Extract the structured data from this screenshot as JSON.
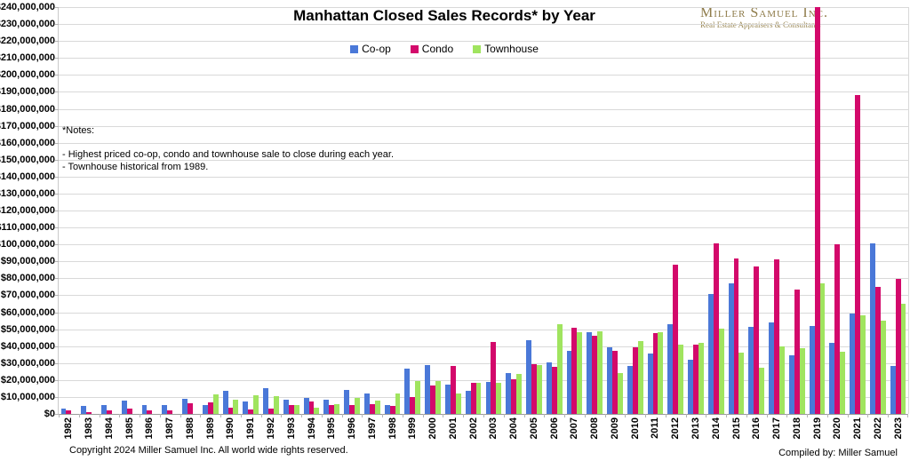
{
  "title": "Manhattan Closed Sales Records* by Year",
  "logo": {
    "name": "Miller Samuel Inc.",
    "tagline": "Real Estate Appraisers & Consultants",
    "color": "#8e7b49"
  },
  "legend": [
    {
      "label": "Co-op",
      "color": "#4a78d8"
    },
    {
      "label": "Condo",
      "color": "#d3096b"
    },
    {
      "label": "Townhouse",
      "color": "#a0e45f"
    }
  ],
  "notes": {
    "heading": "*Notes:",
    "lines": [
      "- Highest priced co-op, condo and townhouse sale to close during each year.",
      "- Townhouse historical from 1989."
    ]
  },
  "footer": {
    "copyright": "Copyright 2024 Miller Samuel Inc.  All world wide rights reserved.",
    "compiled_by": "Compiled by: Miller Samuel"
  },
  "chart_data": {
    "type": "bar",
    "title": "Manhattan Closed Sales Records* by Year",
    "grid": true,
    "legend_position": "top-center",
    "ylim": [
      0,
      240000000
    ],
    "ytick_interval": 10000000,
    "ytick_labels": [
      "$240,000,000",
      "$230,000,000",
      "$220,000,000",
      "$210,000,000",
      "$200,000,000",
      "$190,000,000",
      "$180,000,000",
      "$170,000,000",
      "$160,000,000",
      "$150,000,000",
      "$140,000,000",
      "$130,000,000",
      "$120,000,000",
      "$110,000,000",
      "$100,000,000",
      "$90,000,000",
      "$80,000,000",
      "$70,000,000",
      "$60,000,000",
      "$50,000,000",
      "$40,000,000",
      "$30,000,000",
      "$20,000,000",
      "$10,000,000",
      "$0"
    ],
    "categories": [
      1982,
      1983,
      1984,
      1985,
      1986,
      1987,
      1988,
      1989,
      1990,
      1991,
      1992,
      1993,
      1994,
      1995,
      1996,
      1997,
      1998,
      1999,
      2000,
      2001,
      2002,
      2003,
      2004,
      2005,
      2006,
      2007,
      2008,
      2009,
      2010,
      2011,
      2012,
      2013,
      2014,
      2015,
      2016,
      2017,
      2018,
      2019,
      2020,
      2021,
      2022,
      2023
    ],
    "series": [
      {
        "name": "Co-op",
        "color": "#4a78d8",
        "values": [
          3000000,
          4500000,
          5000000,
          8000000,
          5500000,
          5000000,
          9000000,
          5000000,
          13500000,
          7500000,
          15000000,
          8500000,
          9500000,
          8500000,
          14000000,
          12000000,
          5000000,
          26500000,
          29000000,
          17500000,
          13500000,
          19000000,
          24000000,
          43500000,
          30500000,
          37000000,
          48000000,
          39500000,
          28500000,
          35500000,
          53000000,
          32000000,
          70500000,
          77000000,
          51500000,
          54000000,
          34500000,
          52000000,
          42000000,
          59000000,
          100500000,
          28500000
        ]
      },
      {
        "name": "Condo",
        "color": "#d3096b",
        "values": [
          2000000,
          1000000,
          2000000,
          3000000,
          2000000,
          2000000,
          6500000,
          7000000,
          3500000,
          2500000,
          3000000,
          5000000,
          7500000,
          5500000,
          5000000,
          6000000,
          4500000,
          10000000,
          17000000,
          28500000,
          18500000,
          42500000,
          20500000,
          29500000,
          28000000,
          51000000,
          46000000,
          37000000,
          39500000,
          47500000,
          88000000,
          41000000,
          100500000,
          91500000,
          87000000,
          91000000,
          73500000,
          240000000,
          99900000,
          188000000,
          75000000,
          79500000
        ]
      },
      {
        "name": "Townhouse",
        "color": "#a0e45f",
        "values": [
          null,
          null,
          null,
          null,
          null,
          null,
          null,
          11500000,
          8500000,
          11000000,
          10500000,
          5000000,
          3500000,
          6000000,
          9500000,
          8000000,
          12000000,
          19500000,
          19500000,
          12000000,
          18500000,
          18500000,
          23500000,
          29000000,
          53000000,
          48000000,
          48500000,
          24000000,
          43000000,
          48000000,
          41000000,
          42000000,
          50500000,
          36000000,
          27000000,
          40000000,
          39000000,
          77000000,
          36500000,
          58000000,
          55000000,
          65000000
        ]
      }
    ]
  }
}
